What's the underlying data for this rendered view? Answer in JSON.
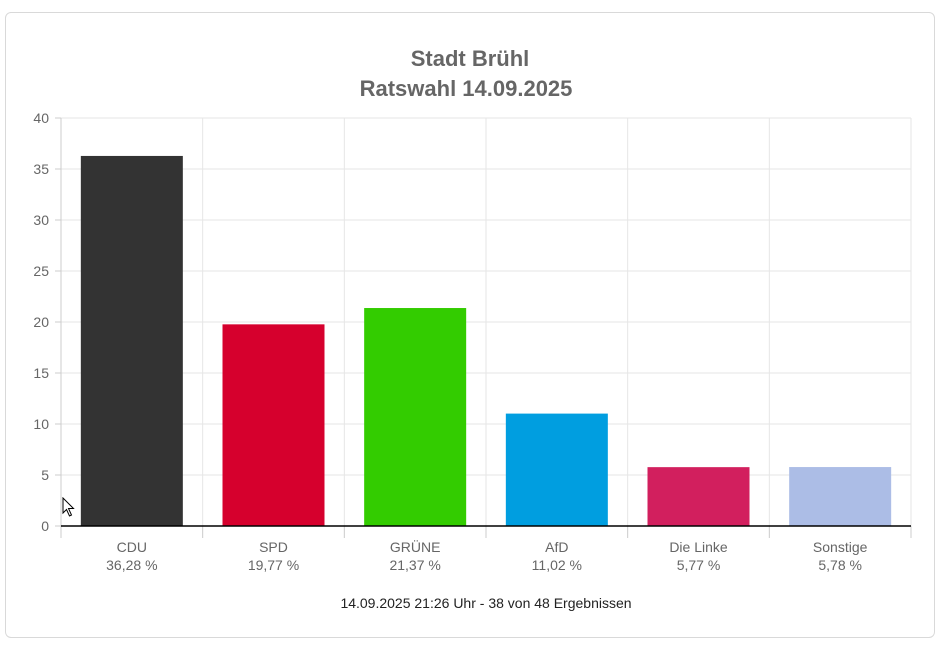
{
  "chart_data": {
    "type": "bar",
    "title": "Stadt Brühl",
    "subtitle": "Ratswahl 14.09.2025",
    "categories": [
      "CDU",
      "SPD",
      "GRÜNE",
      "AfD",
      "Die Linke",
      "Sonstige"
    ],
    "value_labels": [
      "36,28 %",
      "19,77 %",
      "21,37 %",
      "11,02 %",
      "5,77 %",
      "5,78 %"
    ],
    "values": [
      36.28,
      19.77,
      21.37,
      11.02,
      5.77,
      5.78
    ],
    "colors": [
      "#333333",
      "#d6002d",
      "#33cc00",
      "#009ee0",
      "#d21f5e",
      "#acbde6"
    ],
    "ylim": [
      0,
      40
    ],
    "yticks": [
      0,
      5,
      10,
      15,
      20,
      25,
      30,
      35,
      40
    ],
    "grid": true,
    "footer": "14.09.2025 21:26 Uhr - 38 von 48 Ergebnissen"
  }
}
